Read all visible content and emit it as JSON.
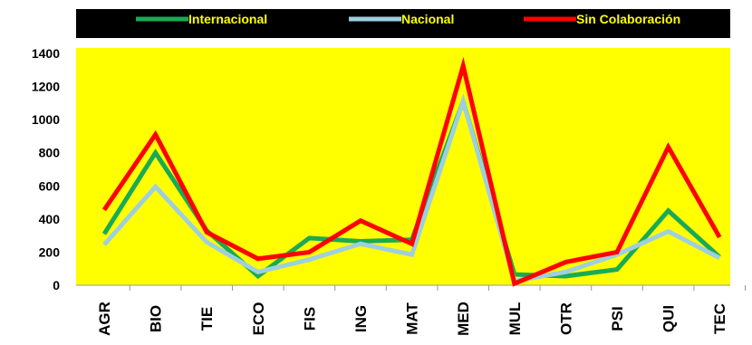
{
  "chart_data": {
    "type": "line",
    "categories": [
      "AGR",
      "BIO",
      "TIE",
      "ECO",
      "FIS",
      "ING",
      "MAT",
      "MED",
      "MUL",
      "OTR",
      "PSI",
      "QUI",
      "TEC"
    ],
    "ylim": [
      0,
      1400
    ],
    "yticks": [
      0,
      200,
      400,
      600,
      800,
      1000,
      1200,
      1400
    ],
    "grid": false,
    "legend_position": "top",
    "plot_background": "#ffff00",
    "legend_background": "#000000",
    "series": [
      {
        "name": "Internacional",
        "color": "#1aaa55",
        "values": [
          310,
          800,
          330,
          55,
          285,
          265,
          275,
          1110,
          65,
          55,
          95,
          450,
          170
        ]
      },
      {
        "name": "Nacional",
        "color": "#9ecfdf",
        "values": [
          245,
          595,
          260,
          80,
          155,
          250,
          185,
          1110,
          25,
          80,
          185,
          325,
          165
        ]
      },
      {
        "name": "Sin Colaboración",
        "color": "#ff0000",
        "values": [
          455,
          910,
          320,
          160,
          200,
          390,
          250,
          1325,
          10,
          140,
          200,
          835,
          290
        ]
      }
    ]
  }
}
